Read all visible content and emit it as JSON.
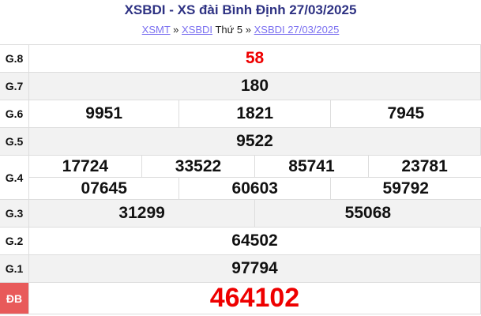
{
  "header": {
    "title": "XSBDI - XS đài Bình Định 27/03/2025"
  },
  "breadcrumb": {
    "link1": "XSMT",
    "sep1": "»",
    "link2": "XSBDI",
    "text": "Thứ 5",
    "sep2": "»",
    "link3": "XSBDI 27/03/2025"
  },
  "prizes": {
    "g8": {
      "label": "G.8",
      "values": [
        "58"
      ]
    },
    "g7": {
      "label": "G.7",
      "values": [
        "180"
      ]
    },
    "g6": {
      "label": "G.6",
      "values": [
        "9951",
        "1821",
        "7945"
      ]
    },
    "g5": {
      "label": "G.5",
      "values": [
        "9522"
      ]
    },
    "g4": {
      "label": "G.4",
      "values": [
        "17724",
        "33522",
        "85741",
        "23781",
        "07645",
        "60603",
        "59792"
      ]
    },
    "g3": {
      "label": "G.3",
      "values": [
        "31299",
        "55068"
      ]
    },
    "g2": {
      "label": "G.2",
      "values": [
        "64502"
      ]
    },
    "g1": {
      "label": "G.1",
      "values": [
        "97794"
      ]
    },
    "db": {
      "label": "ĐB",
      "values": [
        "464102"
      ]
    }
  },
  "colors": {
    "title": "#2e3283",
    "highlight": "#ee0000",
    "special_label_bg": "#e85a5a"
  }
}
